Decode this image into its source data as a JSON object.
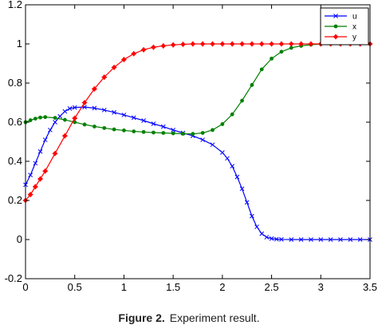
{
  "chart_data": {
    "type": "line",
    "title": "",
    "xlabel": "",
    "ylabel": "",
    "xlim": [
      0,
      3.5
    ],
    "ylim": [
      -0.2,
      1.2
    ],
    "xticks": [
      "0",
      "0.5",
      "1",
      "1.5",
      "2",
      "2.5",
      "3",
      "3.5"
    ],
    "yticks": [
      "-0.2",
      "0",
      "0.2",
      "0.4",
      "0.6",
      "0.8",
      "1",
      "1.2"
    ],
    "grid": false,
    "legend_position": "top-right",
    "series": [
      {
        "name": "u",
        "color": "#0000ff",
        "marker": "x",
        "x": [
          0,
          0.05,
          0.1,
          0.15,
          0.2,
          0.25,
          0.3,
          0.35,
          0.4,
          0.45,
          0.5,
          0.6,
          0.7,
          0.8,
          0.9,
          1.0,
          1.1,
          1.2,
          1.3,
          1.4,
          1.5,
          1.6,
          1.7,
          1.8,
          1.9,
          2.0,
          2.05,
          2.1,
          2.15,
          2.2,
          2.25,
          2.3,
          2.35,
          2.4,
          2.45,
          2.5,
          2.55,
          2.6,
          2.7,
          2.8,
          2.9,
          3.0,
          3.1,
          3.2,
          3.3,
          3.4,
          3.5
        ],
        "y": [
          0.28,
          0.33,
          0.39,
          0.45,
          0.51,
          0.56,
          0.6,
          0.63,
          0.655,
          0.67,
          0.675,
          0.677,
          0.672,
          0.662,
          0.65,
          0.637,
          0.623,
          0.608,
          0.592,
          0.577,
          0.56,
          0.545,
          0.53,
          0.51,
          0.485,
          0.445,
          0.415,
          0.375,
          0.32,
          0.26,
          0.19,
          0.12,
          0.065,
          0.03,
          0.012,
          0.005,
          0.002,
          0.001,
          0,
          0,
          0,
          0,
          0,
          0,
          0,
          0,
          0
        ]
      },
      {
        "name": "x",
        "color": "#008000",
        "marker": "dot",
        "x": [
          0,
          0.05,
          0.1,
          0.15,
          0.2,
          0.3,
          0.4,
          0.5,
          0.6,
          0.7,
          0.8,
          0.9,
          1.0,
          1.1,
          1.2,
          1.3,
          1.4,
          1.5,
          1.6,
          1.7,
          1.8,
          1.9,
          2.0,
          2.1,
          2.2,
          2.3,
          2.4,
          2.5,
          2.6,
          2.7,
          2.8,
          2.9,
          3.0,
          3.1,
          3.2,
          3.3,
          3.4,
          3.5
        ],
        "y": [
          0.6,
          0.61,
          0.618,
          0.624,
          0.626,
          0.622,
          0.612,
          0.6,
          0.588,
          0.578,
          0.57,
          0.563,
          0.558,
          0.553,
          0.55,
          0.547,
          0.545,
          0.543,
          0.541,
          0.54,
          0.545,
          0.56,
          0.59,
          0.64,
          0.71,
          0.79,
          0.87,
          0.925,
          0.96,
          0.98,
          0.99,
          0.996,
          0.999,
          1.0,
          1.0,
          1.0,
          1.0,
          1.0
        ]
      },
      {
        "name": "y",
        "color": "#ff0000",
        "marker": "diamond",
        "x": [
          0,
          0.05,
          0.1,
          0.15,
          0.2,
          0.3,
          0.4,
          0.5,
          0.6,
          0.7,
          0.8,
          0.9,
          1.0,
          1.1,
          1.2,
          1.3,
          1.4,
          1.5,
          1.6,
          1.7,
          1.8,
          1.9,
          2.0,
          2.1,
          2.2,
          2.3,
          2.4,
          2.5,
          2.6,
          2.7,
          2.8,
          2.9,
          3.0,
          3.1,
          3.2,
          3.3,
          3.4,
          3.5
        ],
        "y": [
          0.2,
          0.23,
          0.27,
          0.31,
          0.35,
          0.44,
          0.53,
          0.62,
          0.7,
          0.77,
          0.83,
          0.88,
          0.92,
          0.95,
          0.97,
          0.983,
          0.99,
          0.995,
          0.998,
          1.0,
          1.0,
          1.0,
          1.0,
          1.0,
          1.0,
          1.0,
          1.0,
          1.0,
          1.0,
          1.0,
          1.0,
          1.0,
          1.0,
          1.0,
          1.0,
          1.0,
          1.0,
          1.0
        ]
      }
    ]
  },
  "caption": {
    "label": "Figure 2.",
    "text": "Experiment result."
  }
}
